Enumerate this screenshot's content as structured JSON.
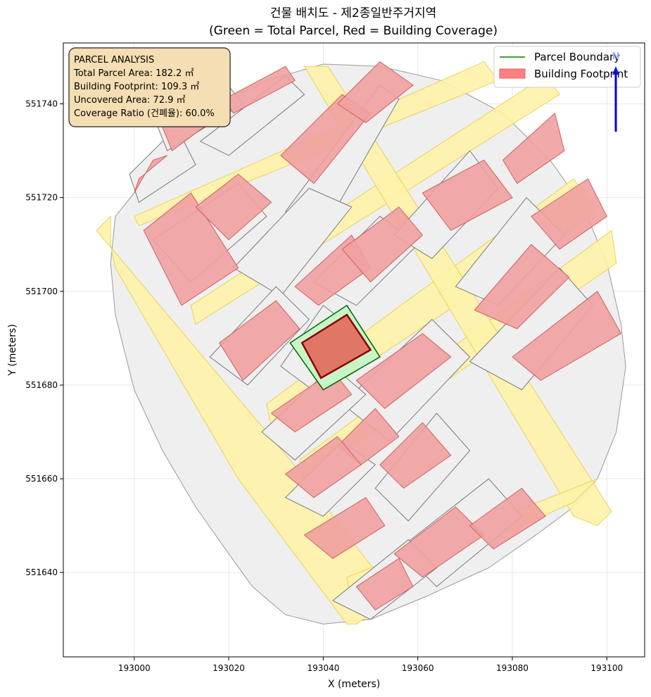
{
  "title": {
    "line1": "건물 배치도 - 제2종일반주거지역",
    "line2": "(Green = Total Parcel, Red = Building Coverage)"
  },
  "axes": {
    "xlabel": "X (meters)",
    "ylabel": "Y (meters)",
    "xlim": [
      192985,
      193108
    ],
    "ylim": [
      551622,
      551753
    ],
    "xticks": [
      {
        "value": 193000,
        "label": "193000"
      },
      {
        "value": 193020,
        "label": "193020"
      },
      {
        "value": 193040,
        "label": "193040"
      },
      {
        "value": 193060,
        "label": "193060"
      },
      {
        "value": 193080,
        "label": "193080"
      },
      {
        "value": 193100,
        "label": "193100"
      }
    ],
    "yticks": [
      {
        "value": 551640,
        "label": "551640"
      },
      {
        "value": 551660,
        "label": "551660"
      },
      {
        "value": 551680,
        "label": "551680"
      },
      {
        "value": 551700,
        "label": "551700"
      },
      {
        "value": 551720,
        "label": "551720"
      },
      {
        "value": 551740,
        "label": "551740"
      }
    ],
    "grid": true
  },
  "legend": {
    "placement": "top-right",
    "items": [
      {
        "label": "Parcel Boundary",
        "kind": "line",
        "color": "#008000"
      },
      {
        "label": "Building Footprint",
        "kind": "patch",
        "color": "#ff8080"
      }
    ]
  },
  "info_box": {
    "lines": [
      "PARCEL ANALYSIS",
      "Total Parcel Area: 182.2 ㎡",
      "Building Footprint: 109.3 ㎡",
      "Uncovered Area: 72.9 ㎡",
      "Coverage Ratio (건폐율): 60.0%"
    ],
    "fill": "#f5deb3"
  },
  "north_arrow": {
    "label": "N",
    "color": "#0000dd"
  },
  "colors": {
    "road": "#fff2a8",
    "road_edge": "#e8d35a",
    "parcel_fill": "#efefef",
    "parcel_edge": "#7a7a7a",
    "building_fill": "#f0a0a0",
    "building_edge": "#d06060",
    "target_parcel_fill": "#c8f5c8",
    "target_parcel_edge": "#006400",
    "target_building_fill": "#e07766",
    "target_building_edge": "#8b0000"
  },
  "map_data": {
    "area_outline": [
      [
        193000,
        551721
      ],
      [
        193005,
        551728
      ],
      [
        193015,
        551738
      ],
      [
        193028,
        551745
      ],
      [
        193040,
        551748.5
      ],
      [
        193052,
        551748
      ],
      [
        193065,
        551745
      ],
      [
        193078,
        551738
      ],
      [
        193088,
        551728
      ],
      [
        193095,
        551718
      ],
      [
        193100,
        551706
      ],
      [
        193103,
        551693
      ],
      [
        193104,
        551684
      ],
      [
        193102,
        551670
      ],
      [
        193098,
        551660
      ],
      [
        193093,
        551654
      ],
      [
        193085,
        551648
      ],
      [
        193075,
        551641
      ],
      [
        193062,
        551635
      ],
      [
        193050,
        551630
      ],
      [
        193040,
        551629
      ],
      [
        193032,
        551631
      ],
      [
        193025,
        551637
      ],
      [
        193020,
        551644
      ],
      [
        193013,
        551654
      ],
      [
        193006,
        551666
      ],
      [
        193000,
        551679
      ],
      [
        192996,
        551695
      ],
      [
        192995,
        551706
      ],
      [
        192996,
        551716
      ]
    ],
    "roads": [
      [
        [
          192995,
          551716
        ],
        [
          192992,
          551713
        ],
        [
          193033,
          551664
        ],
        [
          193055,
          551635
        ],
        [
          193047,
          551629
        ],
        [
          193045,
          551629
        ],
        [
          193022,
          551660
        ],
        [
          192996,
          551705
        ],
        [
          192995,
          551710
        ]
      ],
      [
        [
          193000,
          551716
        ],
        [
          193074,
          551749
        ],
        [
          193077,
          551745
        ],
        [
          193001,
          551714
        ]
      ],
      [
        [
          193012,
          551697
        ],
        [
          193087,
          551746
        ],
        [
          193090,
          551742
        ],
        [
          193013,
          551693
        ]
      ],
      [
        [
          193028,
          551676
        ],
        [
          193093,
          551724
        ],
        [
          193098,
          551717
        ],
        [
          193029,
          551671
        ]
      ],
      [
        [
          193035,
          551664
        ],
        [
          193101,
          551713
        ],
        [
          193102,
          551706
        ],
        [
          193036,
          551660
        ]
      ],
      [
        [
          193036,
          551748
        ],
        [
          193041,
          551748
        ],
        [
          193101,
          551653
        ],
        [
          193098,
          551650
        ],
        [
          193093,
          551652
        ]
      ],
      [
        [
          193045,
          551639
        ],
        [
          193098,
          551660
        ],
        [
          193093,
          551655
        ],
        [
          193046,
          551634
        ]
      ]
    ],
    "blocks": [
      [
        [
          193001,
          551719
        ],
        [
          193013,
          551727
        ],
        [
          193009,
          551735
        ],
        [
          192999,
          551725
        ]
      ],
      [
        [
          193007,
          551730
        ],
        [
          193023,
          551740
        ],
        [
          193019,
          551745
        ],
        [
          193005,
          551735
        ]
      ],
      [
        [
          193014,
          551732
        ],
        [
          193032,
          551746
        ],
        [
          193036,
          551742
        ],
        [
          193020,
          551729
        ]
      ],
      [
        [
          193032,
          551717
        ],
        [
          193052,
          551744
        ],
        [
          193056,
          551741
        ],
        [
          193040,
          551713
        ]
      ],
      [
        [
          193004,
          551711
        ],
        [
          193022,
          551723
        ],
        [
          193028,
          551716
        ],
        [
          193012,
          551702
        ]
      ],
      [
        [
          193021,
          551705
        ],
        [
          193037,
          551722
        ],
        [
          193046,
          551718
        ],
        [
          193031,
          551699
        ]
      ],
      [
        [
          193038,
          551702
        ],
        [
          193052,
          551716
        ],
        [
          193060,
          551710
        ],
        [
          193047,
          551697
        ]
      ],
      [
        [
          193055,
          551712
        ],
        [
          193071,
          551730
        ],
        [
          193077,
          551722
        ],
        [
          193063,
          551707
        ]
      ],
      [
        [
          193068,
          551701
        ],
        [
          193083,
          551720
        ],
        [
          193091,
          551712
        ],
        [
          193077,
          551697
        ]
      ],
      [
        [
          193071,
          551685
        ],
        [
          193090,
          551705
        ],
        [
          193097,
          551697
        ],
        [
          193082,
          551679
        ]
      ],
      [
        [
          193016,
          551686
        ],
        [
          193030,
          551701
        ],
        [
          193037,
          551694
        ],
        [
          193024,
          551680
        ]
      ],
      [
        [
          193031,
          551684
        ],
        [
          193040,
          551697
        ],
        [
          193049,
          551690
        ],
        [
          193039,
          551678
        ]
      ],
      [
        [
          193044,
          551676
        ],
        [
          193063,
          551694
        ],
        [
          193071,
          551686
        ],
        [
          193054,
          551668
        ]
      ],
      [
        [
          193027,
          551670
        ],
        [
          193042,
          551684
        ],
        [
          193049,
          551678
        ],
        [
          193034,
          551664
        ]
      ],
      [
        [
          193032,
          551656
        ],
        [
          193044,
          551668
        ],
        [
          193051,
          551663
        ],
        [
          193040,
          551652
        ]
      ],
      [
        [
          193051,
          551658
        ],
        [
          193064,
          551674
        ],
        [
          193071,
          551666
        ],
        [
          193058,
          551651
        ]
      ],
      [
        [
          193056,
          551645
        ],
        [
          193075,
          551660
        ],
        [
          193082,
          551652
        ],
        [
          193064,
          551637
        ]
      ],
      [
        [
          193042,
          551634
        ],
        [
          193058,
          551647
        ],
        [
          193064,
          551641
        ],
        [
          193050,
          551630
        ]
      ]
    ],
    "buildings": [
      [
        [
          193000,
          551721
        ],
        [
          193004,
          551728
        ],
        [
          193007,
          551729
        ],
        [
          193001,
          551724
        ]
      ],
      [
        [
          193008,
          551730
        ],
        [
          193016,
          551736
        ],
        [
          193013,
          551741
        ],
        [
          193006,
          551735
        ]
      ],
      [
        [
          193021,
          551738
        ],
        [
          193034,
          551745
        ],
        [
          193032,
          551748
        ],
        [
          193019,
          551741
        ]
      ],
      [
        [
          193031,
          551729
        ],
        [
          193044,
          551742
        ],
        [
          193050,
          551738
        ],
        [
          193038,
          551723
        ]
      ],
      [
        [
          193043,
          551740
        ],
        [
          193052,
          551749
        ],
        [
          193059,
          551744
        ],
        [
          193049,
          551736
        ]
      ],
      [
        [
          193002,
          551713
        ],
        [
          193012,
          551721
        ],
        [
          193022,
          551705
        ],
        [
          193010,
          551697
        ]
      ],
      [
        [
          193013,
          551718
        ],
        [
          193022,
          551725
        ],
        [
          193029,
          551719
        ],
        [
          193020,
          551711
        ]
      ],
      [
        [
          193034,
          551701
        ],
        [
          193046,
          551712
        ],
        [
          193050,
          551705
        ],
        [
          193039,
          551697
        ]
      ],
      [
        [
          193044,
          551709
        ],
        [
          193056,
          551718
        ],
        [
          193061,
          551712
        ],
        [
          193050,
          551702
        ]
      ],
      [
        [
          193061,
          551721
        ],
        [
          193074,
          551728
        ],
        [
          193080,
          551720
        ],
        [
          193067,
          551713
        ]
      ],
      [
        [
          193078,
          551728
        ],
        [
          193089,
          551738
        ],
        [
          193091,
          551730
        ],
        [
          193081,
          551723
        ]
      ],
      [
        [
          193084,
          551716
        ],
        [
          193096,
          551724
        ],
        [
          193100,
          551716
        ],
        [
          193090,
          551709
        ]
      ],
      [
        [
          193072,
          551696
        ],
        [
          193084,
          551710
        ],
        [
          193092,
          551703
        ],
        [
          193081,
          551692
        ]
      ],
      [
        [
          193080,
          551686
        ],
        [
          193098,
          551700
        ],
        [
          193103,
          551691
        ],
        [
          193086,
          551681
        ]
      ],
      [
        [
          193018,
          551689
        ],
        [
          193030,
          551698
        ],
        [
          193035,
          551692
        ],
        [
          193023,
          551681
        ]
      ],
      [
        [
          193029,
          551674
        ],
        [
          193042,
          551683
        ],
        [
          193046,
          551678
        ],
        [
          193034,
          551670
        ]
      ],
      [
        [
          193047,
          551681
        ],
        [
          193061,
          551691
        ],
        [
          193067,
          551686
        ],
        [
          193053,
          551675
        ]
      ],
      [
        [
          193043,
          551667
        ],
        [
          193051,
          551675
        ],
        [
          193056,
          551669
        ],
        [
          193048,
          551663
        ]
      ],
      [
        [
          193032,
          551661
        ],
        [
          193043,
          551669
        ],
        [
          193048,
          551663
        ],
        [
          193038,
          551656
        ]
      ],
      [
        [
          193052,
          551663
        ],
        [
          193061,
          551672
        ],
        [
          193067,
          551665
        ],
        [
          193057,
          551658
        ]
      ],
      [
        [
          193036,
          551648
        ],
        [
          193049,
          551656
        ],
        [
          193053,
          551650
        ],
        [
          193042,
          551643
        ]
      ],
      [
        [
          193055,
          551644
        ],
        [
          193068,
          551654
        ],
        [
          193074,
          551648
        ],
        [
          193061,
          551639
        ]
      ],
      [
        [
          193071,
          551650
        ],
        [
          193082,
          551658
        ],
        [
          193087,
          551652
        ],
        [
          193076,
          551645
        ]
      ],
      [
        [
          193047,
          551637
        ],
        [
          193056,
          551643
        ],
        [
          193059,
          551637
        ],
        [
          193051,
          551632
        ]
      ]
    ],
    "target_parcel": [
      [
        193033,
        551689
      ],
      [
        193045,
        551697
      ],
      [
        193052,
        551686
      ],
      [
        193040,
        551679
      ]
    ],
    "target_building": [
      [
        193035.5,
        551689
      ],
      [
        193045,
        551695
      ],
      [
        193050,
        551687.5
      ],
      [
        193039.5,
        551681.5
      ]
    ]
  }
}
